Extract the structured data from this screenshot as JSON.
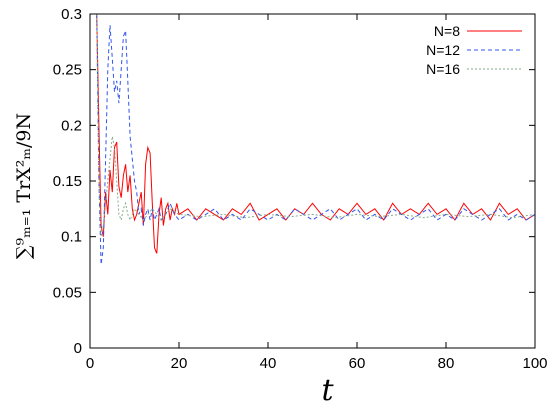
{
  "chart_data": {
    "type": "line",
    "title": "",
    "xlabel": "t",
    "ylabel": "∑⁹ₘ₌₁ TrX²ₘ/9N",
    "xlim": [
      0,
      100
    ],
    "ylim": [
      0,
      0.3
    ],
    "xticks": [
      "0",
      "20",
      "40",
      "60",
      "80",
      "100"
    ],
    "yticks": [
      "0",
      "0.05",
      "0.1",
      "0.15",
      "0.2",
      "0.25",
      "0.3"
    ],
    "grid": false,
    "legend_position": "top-right",
    "series": [
      {
        "name": "N=8",
        "color": "#ff0000",
        "dash": "solid",
        "x": [
          1.5,
          2,
          2.5,
          3,
          3.5,
          4,
          4.5,
          5,
          5.5,
          6,
          6.5,
          7,
          7.5,
          8,
          8.5,
          9,
          9.5,
          10,
          10.5,
          11,
          11.5,
          12,
          12.5,
          13,
          13.5,
          14,
          14.5,
          15,
          15.5,
          16,
          16.5,
          17,
          17.5,
          18,
          18.5,
          19,
          19.5,
          20,
          22,
          24,
          26,
          28,
          30,
          32,
          34,
          36,
          38,
          40,
          42,
          44,
          46,
          48,
          50,
          52,
          54,
          56,
          58,
          60,
          62,
          64,
          66,
          68,
          70,
          72,
          74,
          76,
          78,
          80,
          82,
          84,
          86,
          88,
          90,
          92,
          94,
          96,
          98,
          100
        ],
        "y": [
          0.3,
          0.2,
          0.11,
          0.1,
          0.14,
          0.12,
          0.16,
          0.14,
          0.18,
          0.185,
          0.145,
          0.135,
          0.155,
          0.165,
          0.14,
          0.155,
          0.125,
          0.115,
          0.12,
          0.13,
          0.14,
          0.11,
          0.165,
          0.18,
          0.175,
          0.13,
          0.09,
          0.085,
          0.12,
          0.135,
          0.11,
          0.125,
          0.13,
          0.115,
          0.125,
          0.12,
          0.13,
          0.12,
          0.125,
          0.115,
          0.125,
          0.12,
          0.115,
          0.125,
          0.12,
          0.13,
          0.115,
          0.12,
          0.125,
          0.115,
          0.125,
          0.12,
          0.13,
          0.12,
          0.115,
          0.125,
          0.12,
          0.13,
          0.12,
          0.125,
          0.115,
          0.13,
          0.12,
          0.125,
          0.12,
          0.13,
          0.12,
          0.125,
          0.115,
          0.13,
          0.12,
          0.125,
          0.115,
          0.13,
          0.12,
          0.125,
          0.115,
          0.12
        ]
      },
      {
        "name": "N=12",
        "color": "#3355ee",
        "dash": "dashed",
        "x": [
          1.5,
          2,
          2.5,
          3,
          3.5,
          4,
          4.5,
          5,
          5.5,
          6,
          6.5,
          7,
          7.5,
          8,
          8.5,
          9,
          9.5,
          10,
          10.5,
          11,
          11.5,
          12,
          12.5,
          13,
          13.5,
          14,
          14.5,
          15,
          15.5,
          16,
          17,
          18,
          19,
          20,
          22,
          24,
          26,
          28,
          30,
          32,
          34,
          36,
          38,
          40,
          42,
          44,
          46,
          48,
          50,
          52,
          54,
          56,
          58,
          60,
          62,
          64,
          66,
          68,
          70,
          72,
          74,
          76,
          78,
          80,
          82,
          84,
          86,
          88,
          90,
          92,
          94,
          96,
          98,
          100
        ],
        "y": [
          0.3,
          0.15,
          0.075,
          0.09,
          0.17,
          0.25,
          0.29,
          0.26,
          0.23,
          0.24,
          0.22,
          0.25,
          0.28,
          0.285,
          0.24,
          0.19,
          0.17,
          0.15,
          0.14,
          0.12,
          0.125,
          0.11,
          0.12,
          0.125,
          0.115,
          0.125,
          0.115,
          0.12,
          0.125,
          0.115,
          0.12,
          0.13,
          0.12,
          0.115,
          0.12,
          0.115,
          0.12,
          0.125,
          0.115,
          0.12,
          0.115,
          0.125,
          0.12,
          0.115,
          0.12,
          0.115,
          0.125,
          0.12,
          0.115,
          0.12,
          0.125,
          0.115,
          0.12,
          0.125,
          0.115,
          0.12,
          0.115,
          0.125,
          0.12,
          0.115,
          0.12,
          0.125,
          0.115,
          0.12,
          0.115,
          0.125,
          0.12,
          0.115,
          0.12,
          0.125,
          0.115,
          0.12,
          0.115,
          0.12
        ]
      },
      {
        "name": "N=16",
        "color": "#88aa88",
        "dash": "dotted",
        "x": [
          1.5,
          2,
          2.5,
          3,
          3.5,
          4,
          4.5,
          5,
          5.5,
          6,
          6.5,
          7,
          7.5,
          8,
          8.5,
          9,
          9.5,
          10,
          11,
          12,
          13,
          14,
          15,
          16,
          17,
          18,
          20,
          25,
          30,
          35,
          40,
          45,
          50,
          55,
          60,
          65,
          70,
          75,
          80,
          85,
          90,
          95,
          100
        ],
        "y": [
          0.3,
          0.15,
          0.1,
          0.11,
          0.13,
          0.15,
          0.17,
          0.19,
          0.18,
          0.15,
          0.12,
          0.115,
          0.125,
          0.13,
          0.12,
          0.115,
          0.12,
          0.125,
          0.12,
          0.115,
          0.12,
          0.125,
          0.12,
          0.115,
          0.12,
          0.125,
          0.12,
          0.118,
          0.12,
          0.117,
          0.12,
          0.118,
          0.12,
          0.117,
          0.12,
          0.118,
          0.12,
          0.117,
          0.12,
          0.118,
          0.12,
          0.117,
          0.12
        ]
      }
    ]
  }
}
